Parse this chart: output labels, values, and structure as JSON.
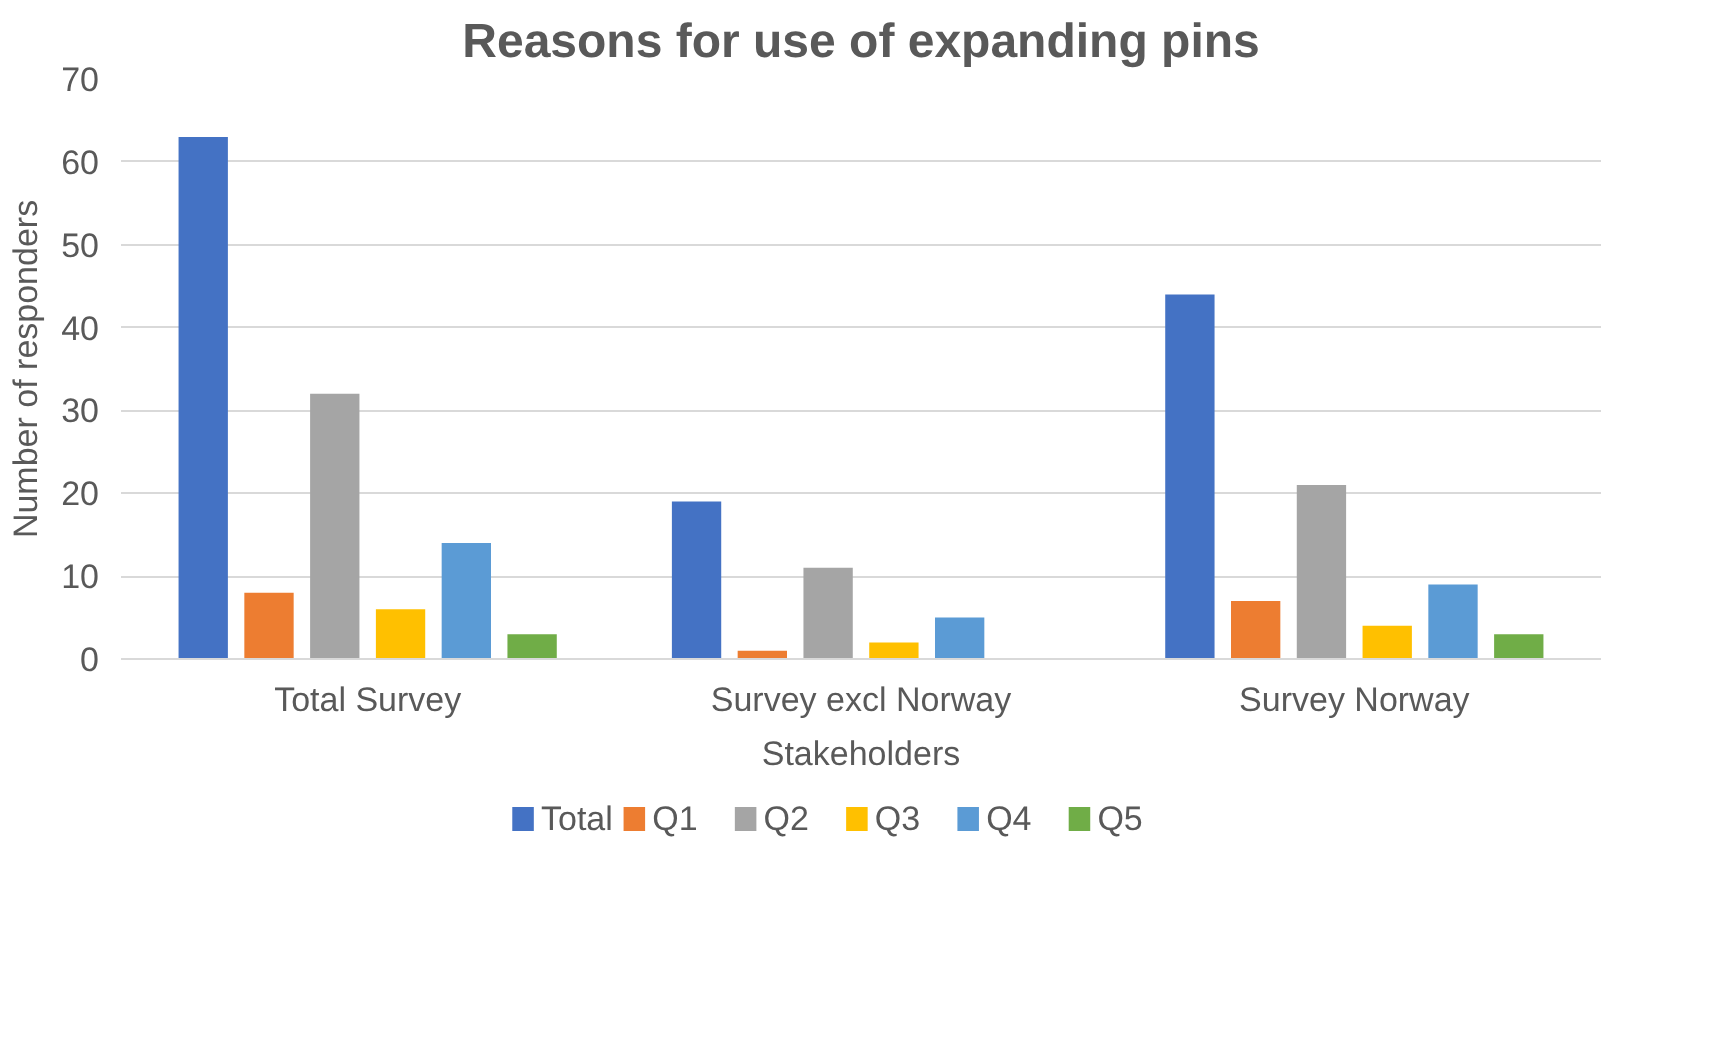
{
  "chart_data": {
    "type": "bar",
    "title": "Reasons for use of expanding pins",
    "xlabel": "Stakeholders",
    "ylabel": "Number of responders",
    "categories": [
      "Total Survey",
      "Survey excl Norway",
      "Survey Norway"
    ],
    "series": [
      {
        "name": "Total",
        "color": "#4472c4",
        "values": [
          63,
          19,
          44
        ]
      },
      {
        "name": "Q1",
        "color": "#ed7d31",
        "values": [
          8,
          1,
          7
        ]
      },
      {
        "name": "Q2",
        "color": "#a5a5a5",
        "values": [
          32,
          11,
          21
        ]
      },
      {
        "name": "Q3",
        "color": "#ffc000",
        "values": [
          6,
          2,
          4
        ]
      },
      {
        "name": "Q4",
        "color": "#5b9bd5",
        "values": [
          14,
          5,
          9
        ]
      },
      {
        "name": "Q5",
        "color": "#70ad47",
        "values": [
          3,
          0,
          3
        ]
      }
    ],
    "ylim": [
      0,
      70
    ],
    "yticks": [
      0,
      10,
      20,
      30,
      40,
      50,
      60,
      70
    ],
    "grid": "y",
    "legend": "bottom"
  }
}
